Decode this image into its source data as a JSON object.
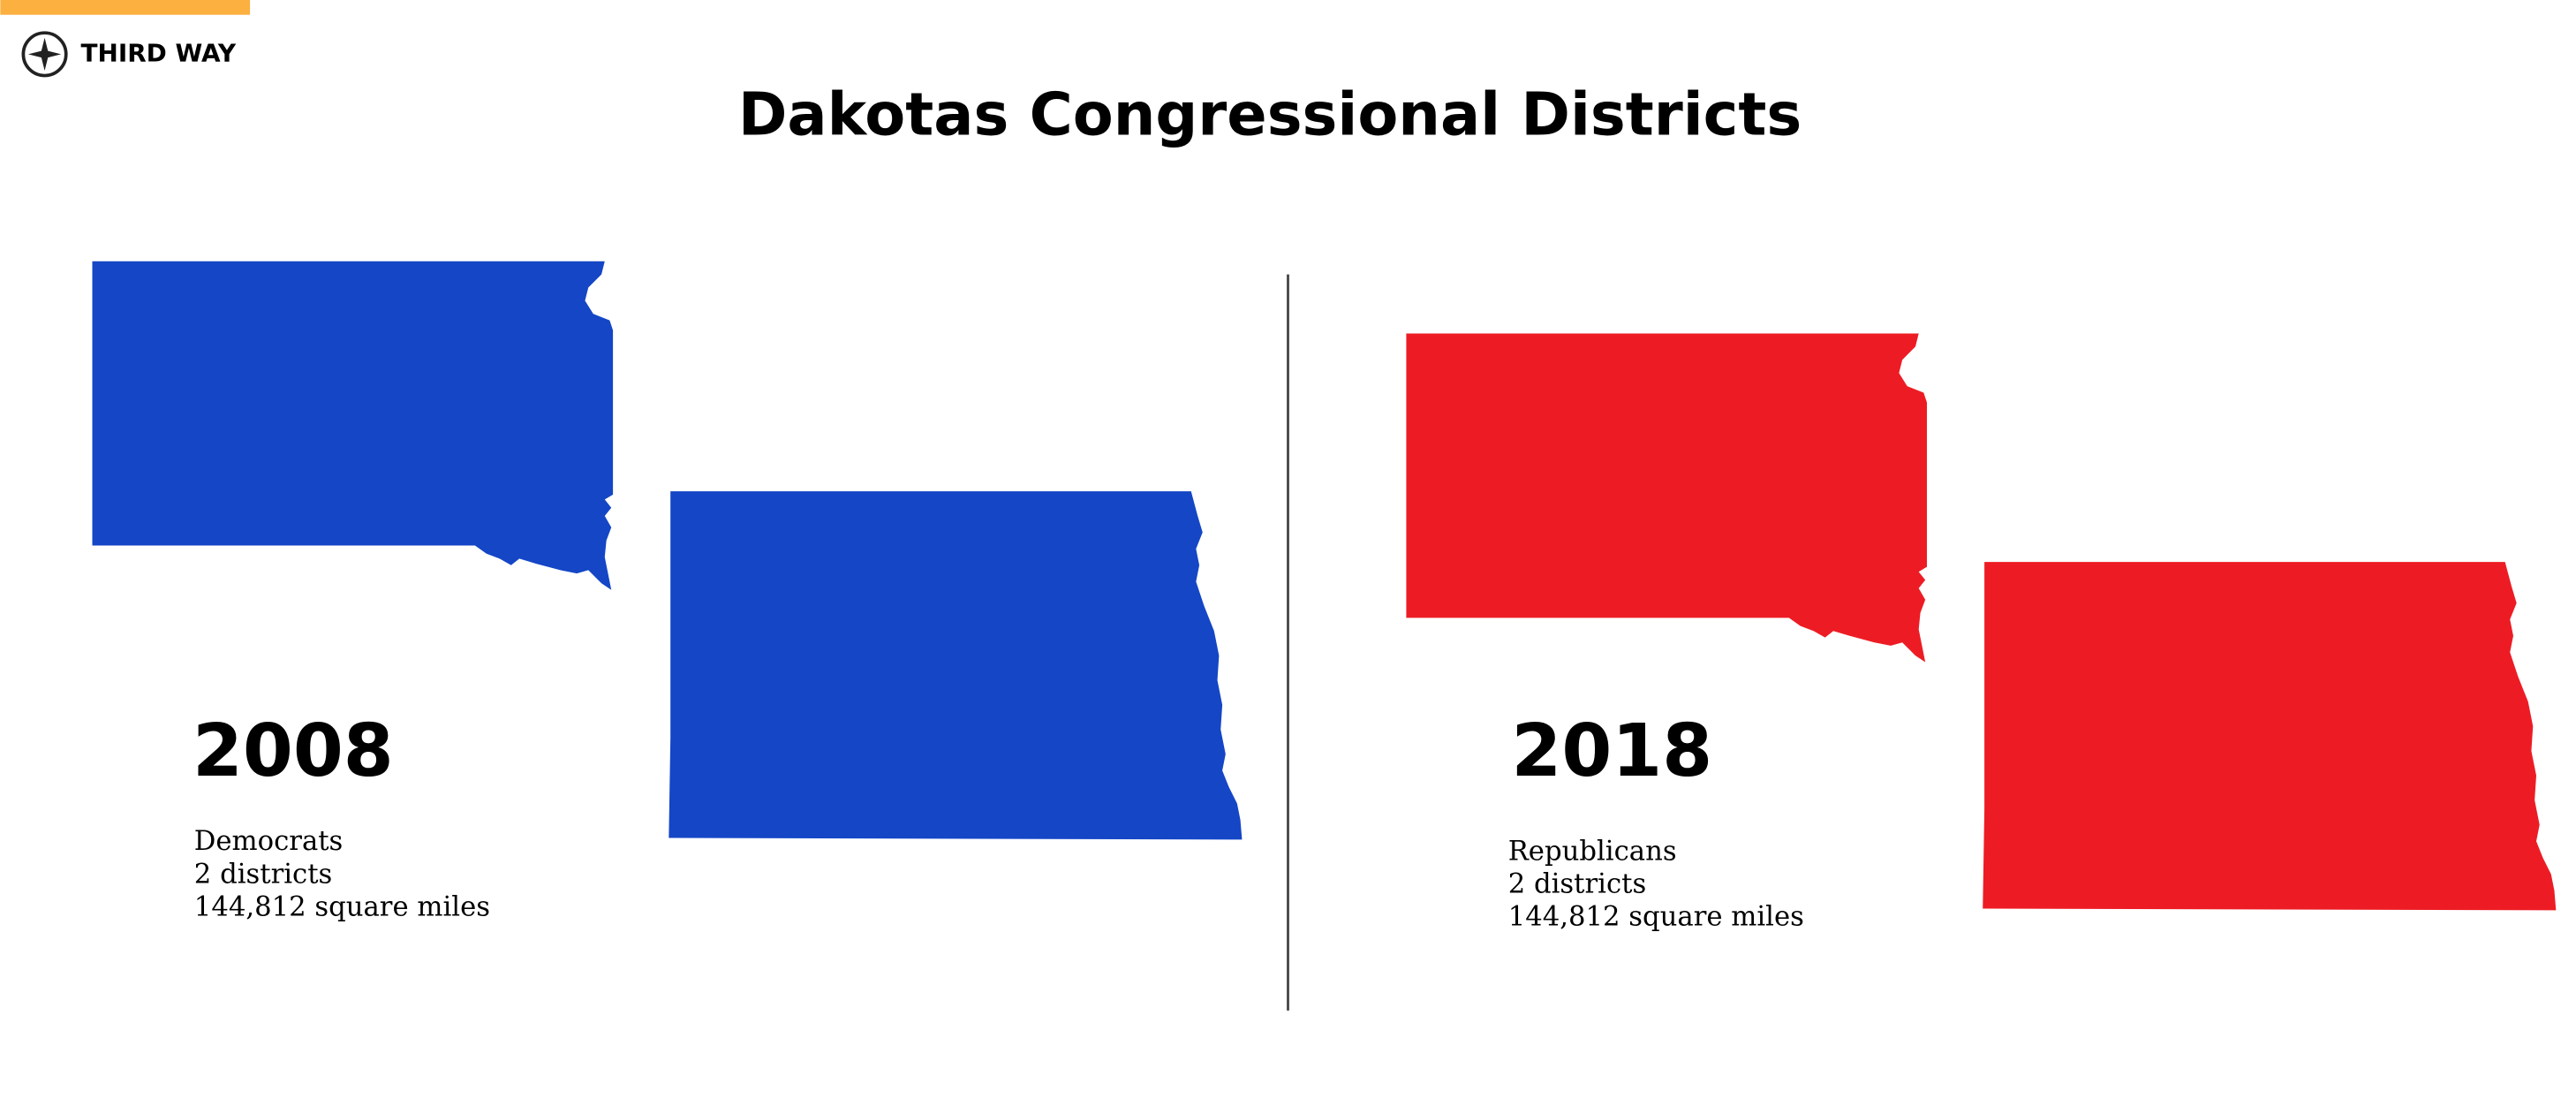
{
  "logo": {
    "text": "THIRD WAY"
  },
  "title": "Dakotas Congressional Districts",
  "panels": [
    {
      "year": "2008",
      "party": "Democrats",
      "districts": "2 districts",
      "area": "144,812 square miles"
    },
    {
      "year": "2018",
      "party": "Republicans",
      "districts": "2 districts",
      "area": "144,812 square miles"
    }
  ]
}
